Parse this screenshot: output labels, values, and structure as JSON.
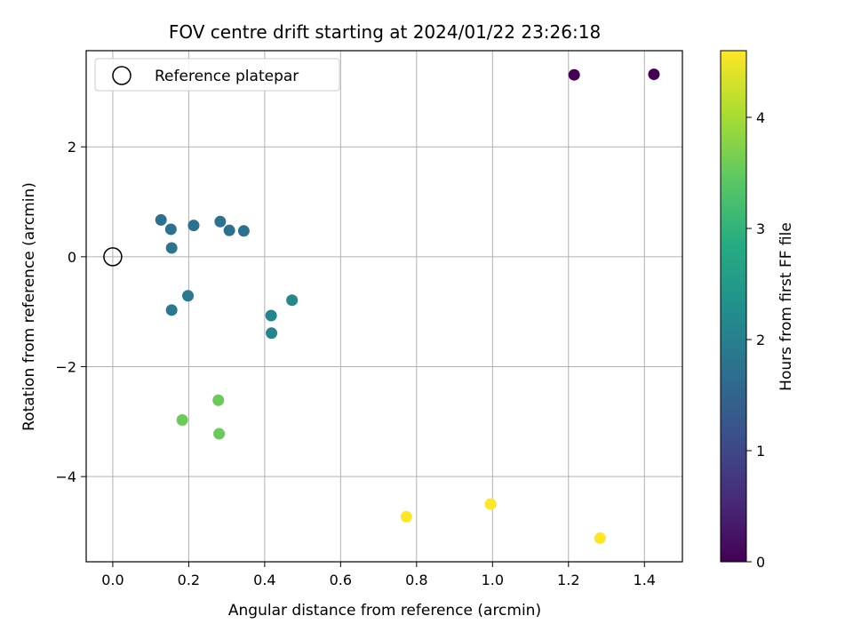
{
  "chart_data": {
    "type": "scatter",
    "title": "FOV centre drift starting at 2024/01/22 23:26:18",
    "xlabel": "Angular distance from reference (arcmin)",
    "ylabel": "Rotation from reference (arcmin)",
    "xlim": [
      -0.07,
      1.5
    ],
    "ylim": [
      -5.55,
      3.75
    ],
    "xticks": [
      0.0,
      0.2,
      0.4,
      0.6,
      0.8,
      1.0,
      1.2,
      1.4
    ],
    "xtick_labels": [
      "0.0",
      "0.2",
      "0.4",
      "0.6",
      "0.8",
      "1.0",
      "1.2",
      "1.4"
    ],
    "yticks": [
      -4,
      -2,
      0,
      2
    ],
    "ytick_labels": [
      "−4",
      "−2",
      "0",
      "2"
    ],
    "grid": true,
    "legend": {
      "position": "top-left",
      "entries": [
        "Reference platepar"
      ]
    },
    "reference_point": {
      "x": 0.0,
      "y": 0.0,
      "label": "Reference platepar"
    },
    "colorbar": {
      "label": "Hours from first FF file",
      "range": [
        0,
        4.6
      ],
      "ticks": [
        0,
        1,
        2,
        3,
        4
      ],
      "tick_labels": [
        "0",
        "1",
        "2",
        "3",
        "4"
      ],
      "colormap": "viridis"
    },
    "points": [
      {
        "x": 1.215,
        "y": 3.31,
        "hours": 0.0
      },
      {
        "x": 1.425,
        "y": 3.32,
        "hours": 0.0
      },
      {
        "x": 0.127,
        "y": 0.67,
        "hours": 1.75
      },
      {
        "x": 0.153,
        "y": 0.5,
        "hours": 1.75
      },
      {
        "x": 0.213,
        "y": 0.57,
        "hours": 1.75
      },
      {
        "x": 0.283,
        "y": 0.64,
        "hours": 1.75
      },
      {
        "x": 0.307,
        "y": 0.48,
        "hours": 1.75
      },
      {
        "x": 0.345,
        "y": 0.47,
        "hours": 1.75
      },
      {
        "x": 0.155,
        "y": 0.16,
        "hours": 1.8
      },
      {
        "x": 0.155,
        "y": -0.97,
        "hours": 1.85
      },
      {
        "x": 0.198,
        "y": -0.71,
        "hours": 1.9
      },
      {
        "x": 0.417,
        "y": -1.07,
        "hours": 2.1
      },
      {
        "x": 0.418,
        "y": -1.39,
        "hours": 2.1
      },
      {
        "x": 0.472,
        "y": -0.79,
        "hours": 2.15
      },
      {
        "x": 0.278,
        "y": -2.61,
        "hours": 3.55
      },
      {
        "x": 0.183,
        "y": -2.97,
        "hours": 3.55
      },
      {
        "x": 0.28,
        "y": -3.22,
        "hours": 3.55
      },
      {
        "x": 0.773,
        "y": -4.73,
        "hours": 4.6
      },
      {
        "x": 0.995,
        "y": -4.5,
        "hours": 4.6
      },
      {
        "x": 1.283,
        "y": -5.12,
        "hours": 4.6
      }
    ]
  }
}
